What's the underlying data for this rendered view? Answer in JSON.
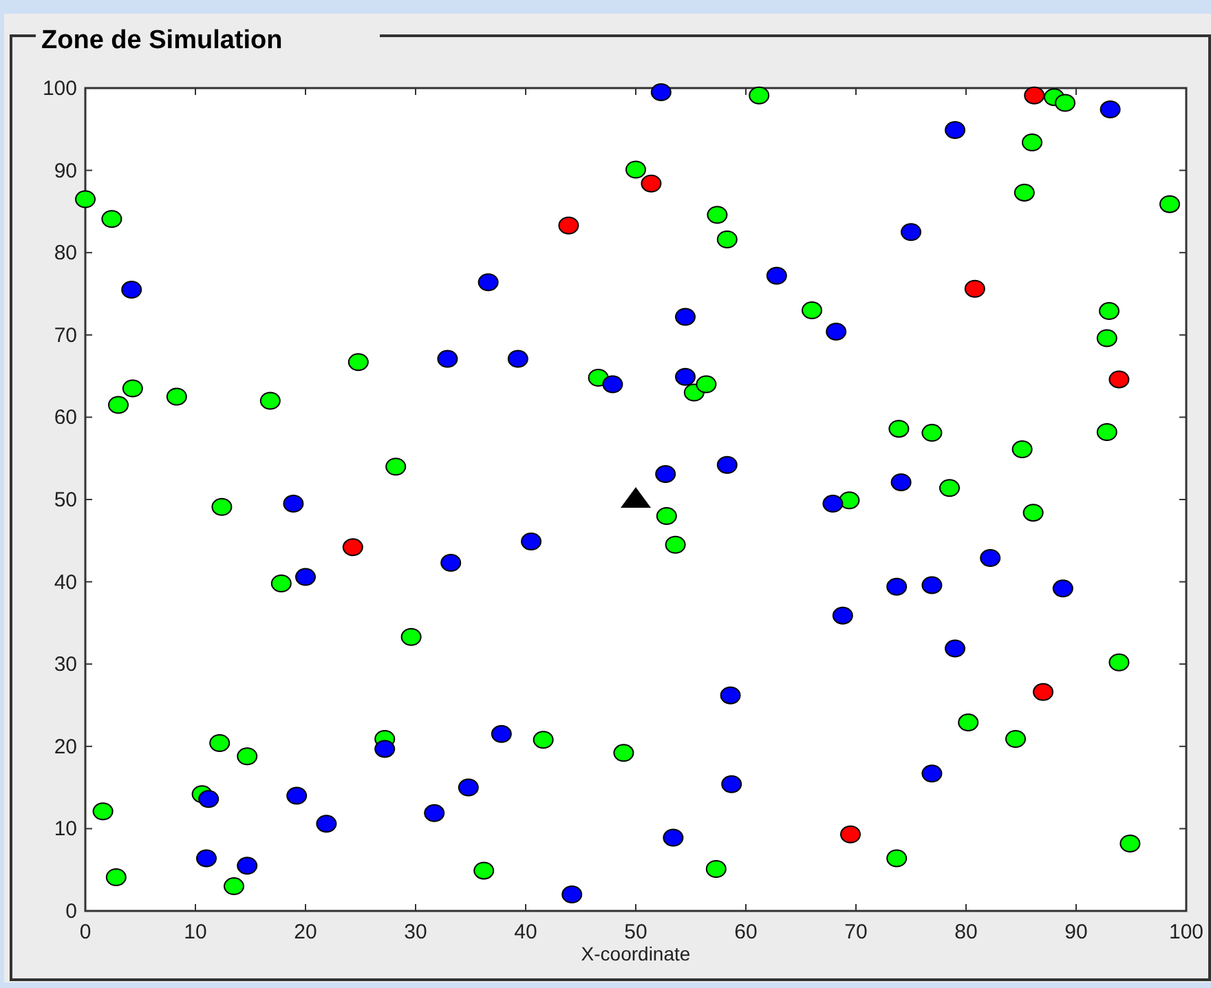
{
  "chart_data": {
    "type": "scatter",
    "title": "Zone de Simulation",
    "xlabel": "X-coordinate",
    "xlim": [
      0,
      100
    ],
    "ylim": [
      0,
      100
    ],
    "xticks": [
      0,
      10,
      20,
      30,
      40,
      50,
      60,
      70,
      80,
      90,
      100
    ],
    "yticks": [
      0,
      10,
      20,
      30,
      40,
      50,
      60,
      70,
      80,
      90,
      100
    ],
    "grid": false,
    "series": [
      {
        "color": "#00ff00",
        "marker": "circle",
        "x": [
          0,
          2.4,
          3,
          4.3,
          8.3,
          16.8,
          24.8,
          28.2,
          12.4,
          17.8,
          29.6,
          27.2,
          12.2,
          14.7,
          10.6,
          1.6,
          2.8,
          13.5,
          36.2,
          41.6,
          48.9,
          57.3,
          73.7,
          80.2,
          84.5,
          93.9,
          94.9,
          69.4,
          52.8,
          53.6,
          46.6,
          55.3,
          56.4,
          50,
          57.4,
          58.3,
          61.2,
          66,
          73.9,
          76.9,
          78.5,
          85.1,
          86.1,
          88,
          89,
          86,
          85.3,
          98.5,
          93,
          92.8,
          92.8
        ],
        "values": [
          86.5,
          84.1,
          61.5,
          63.5,
          62.5,
          62,
          66.7,
          54,
          49.1,
          39.8,
          33.3,
          20.9,
          20.4,
          18.8,
          14.2,
          12.1,
          4.1,
          3,
          4.9,
          20.8,
          19.2,
          5.1,
          6.4,
          22.9,
          20.9,
          30.2,
          8.2,
          49.9,
          48,
          44.5,
          64.8,
          63,
          64,
          90.1,
          84.6,
          81.6,
          99.1,
          73,
          58.6,
          58.1,
          51.4,
          56.1,
          48.4,
          98.9,
          98.2,
          93.4,
          87.3,
          85.9,
          72.9,
          69.6,
          58.2
        ]
      },
      {
        "color": "#0000ff",
        "marker": "circle",
        "x": [
          52.3,
          4.2,
          36.6,
          32.9,
          39.3,
          47.9,
          54.5,
          54.5,
          52.7,
          58.3,
          62.8,
          68.2,
          75,
          79,
          93.1,
          18.9,
          20,
          33.2,
          40.5,
          67.9,
          74.1,
          82.2,
          88.8,
          73.7,
          76.9,
          68.8,
          79,
          58.6,
          76.9,
          58.7,
          53.4,
          44.2,
          31.7,
          34.8,
          37.8,
          27.2,
          19.2,
          21.9,
          11.2,
          11,
          14.7
        ],
        "values": [
          99.5,
          75.5,
          76.4,
          67.1,
          67.1,
          64,
          72.2,
          64.9,
          53.1,
          54.2,
          77.2,
          70.4,
          82.5,
          94.9,
          97.4,
          49.5,
          40.6,
          42.3,
          44.9,
          49.5,
          52.1,
          42.9,
          39.2,
          39.4,
          39.6,
          35.9,
          31.9,
          26.2,
          16.7,
          15.4,
          8.9,
          2,
          11.9,
          15,
          21.5,
          19.7,
          14,
          10.6,
          13.6,
          6.4,
          5.5
        ]
      },
      {
        "color": "#ff0000",
        "marker": "circle",
        "x": [
          43.9,
          51.4,
          86.2,
          80.8,
          93.9,
          24.3,
          87,
          69.5
        ],
        "values": [
          83.3,
          88.4,
          99.1,
          75.6,
          64.6,
          44.2,
          26.6,
          9.3
        ]
      },
      {
        "color": "#000000",
        "marker": "triangle",
        "x": [
          50
        ],
        "values": [
          50
        ]
      }
    ]
  }
}
